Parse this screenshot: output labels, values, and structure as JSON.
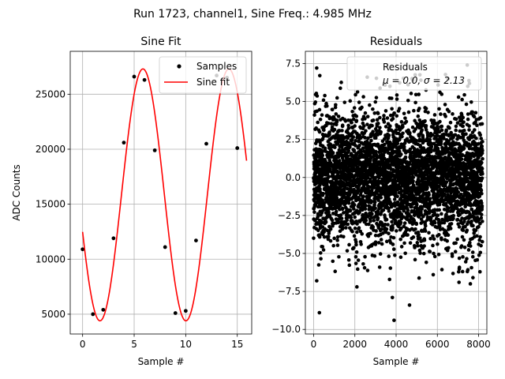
{
  "figure": {
    "suptitle": "Run 1723, channel1, Sine Freq.: 4.985 MHz"
  },
  "chart_data": [
    {
      "type": "line",
      "title": "Sine Fit",
      "xlabel": "Sample #",
      "ylabel": "ADC Counts",
      "xlim": [
        -1.2,
        16.4
      ],
      "ylim": [
        3200,
        28900
      ],
      "x_ticks": [
        0,
        5,
        10,
        15
      ],
      "x_tick_labels": [
        "0",
        "5",
        "10",
        "15"
      ],
      "y_ticks": [
        5000,
        10000,
        15000,
        20000,
        25000
      ],
      "y_tick_labels": [
        "5000",
        "10000",
        "15000",
        "20000",
        "25000"
      ],
      "grid": true,
      "legend": {
        "location": "upper right",
        "entries": [
          "Samples",
          "Sine fit"
        ]
      },
      "series": [
        {
          "name": "Samples",
          "kind": "scatter",
          "color": "#000000",
          "x": [
            0,
            1,
            2,
            3,
            4,
            5,
            6,
            7,
            8,
            9,
            10,
            11,
            12,
            13,
            14,
            15
          ],
          "y": [
            10900,
            5000,
            5400,
            11900,
            20600,
            26600,
            26300,
            19900,
            11100,
            5100,
            5300,
            11700,
            20500,
            26700,
            26500,
            20100
          ]
        },
        {
          "name": "Sine fit",
          "kind": "line",
          "color": "#ff0000",
          "model": {
            "offset": 15850,
            "amplitude": 11450,
            "period": 8.33,
            "phase": 3.44,
            "x_range": [
              0,
              15.9
            ]
          }
        }
      ]
    },
    {
      "type": "scatter",
      "title": "Residuals",
      "xlabel": "Sample #",
      "ylabel": "",
      "xlim": [
        -400,
        8400
      ],
      "ylim": [
        -10.3,
        8.3
      ],
      "x_ticks": [
        0,
        2000,
        4000,
        6000,
        8000
      ],
      "x_tick_labels": [
        "0",
        "2000",
        "4000",
        "6000",
        "8000"
      ],
      "y_ticks": [
        -10.0,
        -7.5,
        -5.0,
        -2.5,
        0.0,
        2.5,
        5.0,
        7.5
      ],
      "y_tick_labels": [
        "−10.0",
        "−7.5",
        "−5.0",
        "−2.5",
        "0.0",
        "2.5",
        "5.0",
        "7.5"
      ],
      "grid": true,
      "legend": {
        "location": "upper right",
        "entries": [
          "Residuals",
          "μ = 0.0, σ = 2.13"
        ]
      },
      "series": [
        {
          "name": "Residuals",
          "kind": "scatter",
          "color": "#000000",
          "n_points": 8192,
          "x_range": [
            0,
            8191
          ],
          "mean": 0.0,
          "sigma": 2.13,
          "outliers": [
            {
              "x": 150,
              "y": 7.2
            },
            {
              "x": 280,
              "y": -8.9
            },
            {
              "x": 3900,
              "y": -9.4
            },
            {
              "x": 3820,
              "y": -7.9
            },
            {
              "x": 4650,
              "y": -8.4
            },
            {
              "x": 7450,
              "y": 7.4
            },
            {
              "x": 2100,
              "y": -7.2
            },
            {
              "x": 150,
              "y": -6.8
            },
            {
              "x": 7600,
              "y": -7.0
            },
            {
              "x": 300,
              "y": 6.7
            },
            {
              "x": 7050,
              "y": -6.9
            },
            {
              "x": 3700,
              "y": 6.0
            },
            {
              "x": 5200,
              "y": 6.4
            },
            {
              "x": 2600,
              "y": 6.6
            },
            {
              "x": 5800,
              "y": -6.4
            }
          ]
        }
      ]
    }
  ]
}
